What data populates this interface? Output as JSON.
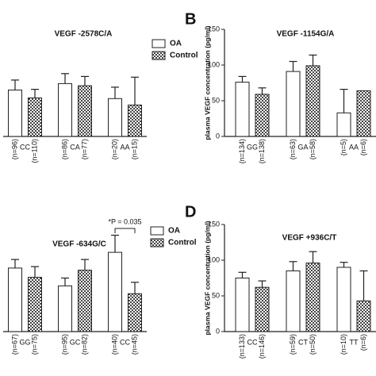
{
  "chart_data": [
    {
      "type": "bar",
      "title": "VEGF -2578C/A",
      "categories": [
        "CC",
        "CA",
        "AA"
      ],
      "ylim": [
        0,
        150
      ],
      "series": [
        {
          "name": "OA",
          "color": "#ffffff",
          "pattern": "solid",
          "values": [
            65,
            74,
            53
          ],
          "errors": [
            14,
            14,
            16
          ],
          "n_labels": [
            "(n=96)",
            "(n=86)",
            "(n=20)"
          ]
        },
        {
          "name": "Control",
          "color": "#444444",
          "pattern": "checker",
          "values": [
            54,
            71,
            44
          ],
          "errors": [
            12,
            13,
            39
          ],
          "n_labels": [
            "(n=110)",
            "(n=77)",
            "(n=15)"
          ]
        }
      ]
    },
    {
      "type": "bar",
      "panel_label": "B",
      "title": "VEGF -1154G/A",
      "ylabel": "plasma VEGF concentration (pg/ml)",
      "categories": [
        "GG",
        "GA",
        "AA"
      ],
      "ylim": [
        0,
        150
      ],
      "yticks": [
        0,
        50,
        100,
        150
      ],
      "series": [
        {
          "color": "#ffffff",
          "pattern": "solid",
          "values": [
            76,
            91,
            33
          ],
          "errors": [
            8,
            14,
            33
          ],
          "n_labels": [
            "(n=134)",
            "(n=63)",
            "(n=5)"
          ]
        },
        {
          "color": "#444444",
          "pattern": "checker",
          "values": [
            59,
            99,
            64
          ],
          "errors": [
            9,
            15,
            null
          ],
          "n_labels": [
            "(n=138)",
            "(n=58)",
            "(n=6)"
          ]
        }
      ]
    },
    {
      "type": "bar",
      "title": "VEGF -634G/C",
      "annotation": "*P = 0.035",
      "categories": [
        "GG",
        "GC",
        "CC"
      ],
      "ylim": [
        0,
        150
      ],
      "series": [
        {
          "name": "OA",
          "color": "#ffffff",
          "pattern": "solid",
          "values": [
            89,
            64,
            111
          ],
          "errors": [
            12,
            11,
            24
          ],
          "n_labels": [
            "(n=67)",
            "(n=95)",
            "(n=40)"
          ]
        },
        {
          "name": "Control",
          "color": "#444444",
          "pattern": "checker",
          "values": [
            76,
            86,
            53
          ],
          "errors": [
            15,
            15,
            16
          ],
          "n_labels": [
            "(n=75)",
            "(n=82)",
            "(n=45)"
          ]
        }
      ]
    },
    {
      "type": "bar",
      "panel_label": "D",
      "title": "VEGF +936C/T",
      "ylabel": "plasma VEGF concentration (pg/ml)",
      "categories": [
        "CC",
        "CT",
        "TT"
      ],
      "ylim": [
        0,
        150
      ],
      "yticks": [
        0,
        50,
        100,
        150
      ],
      "series": [
        {
          "color": "#ffffff",
          "pattern": "solid",
          "values": [
            75,
            85,
            90
          ],
          "errors": [
            8,
            13,
            7
          ],
          "n_labels": [
            "(n=133)",
            "(n=59)",
            "(n=10)"
          ]
        },
        {
          "color": "#444444",
          "pattern": "checker",
          "values": [
            62,
            96,
            43
          ],
          "errors": [
            9,
            16,
            42
          ],
          "n_labels": [
            "(n=146)",
            "(n=50)",
            "(n=6)"
          ]
        }
      ]
    }
  ]
}
